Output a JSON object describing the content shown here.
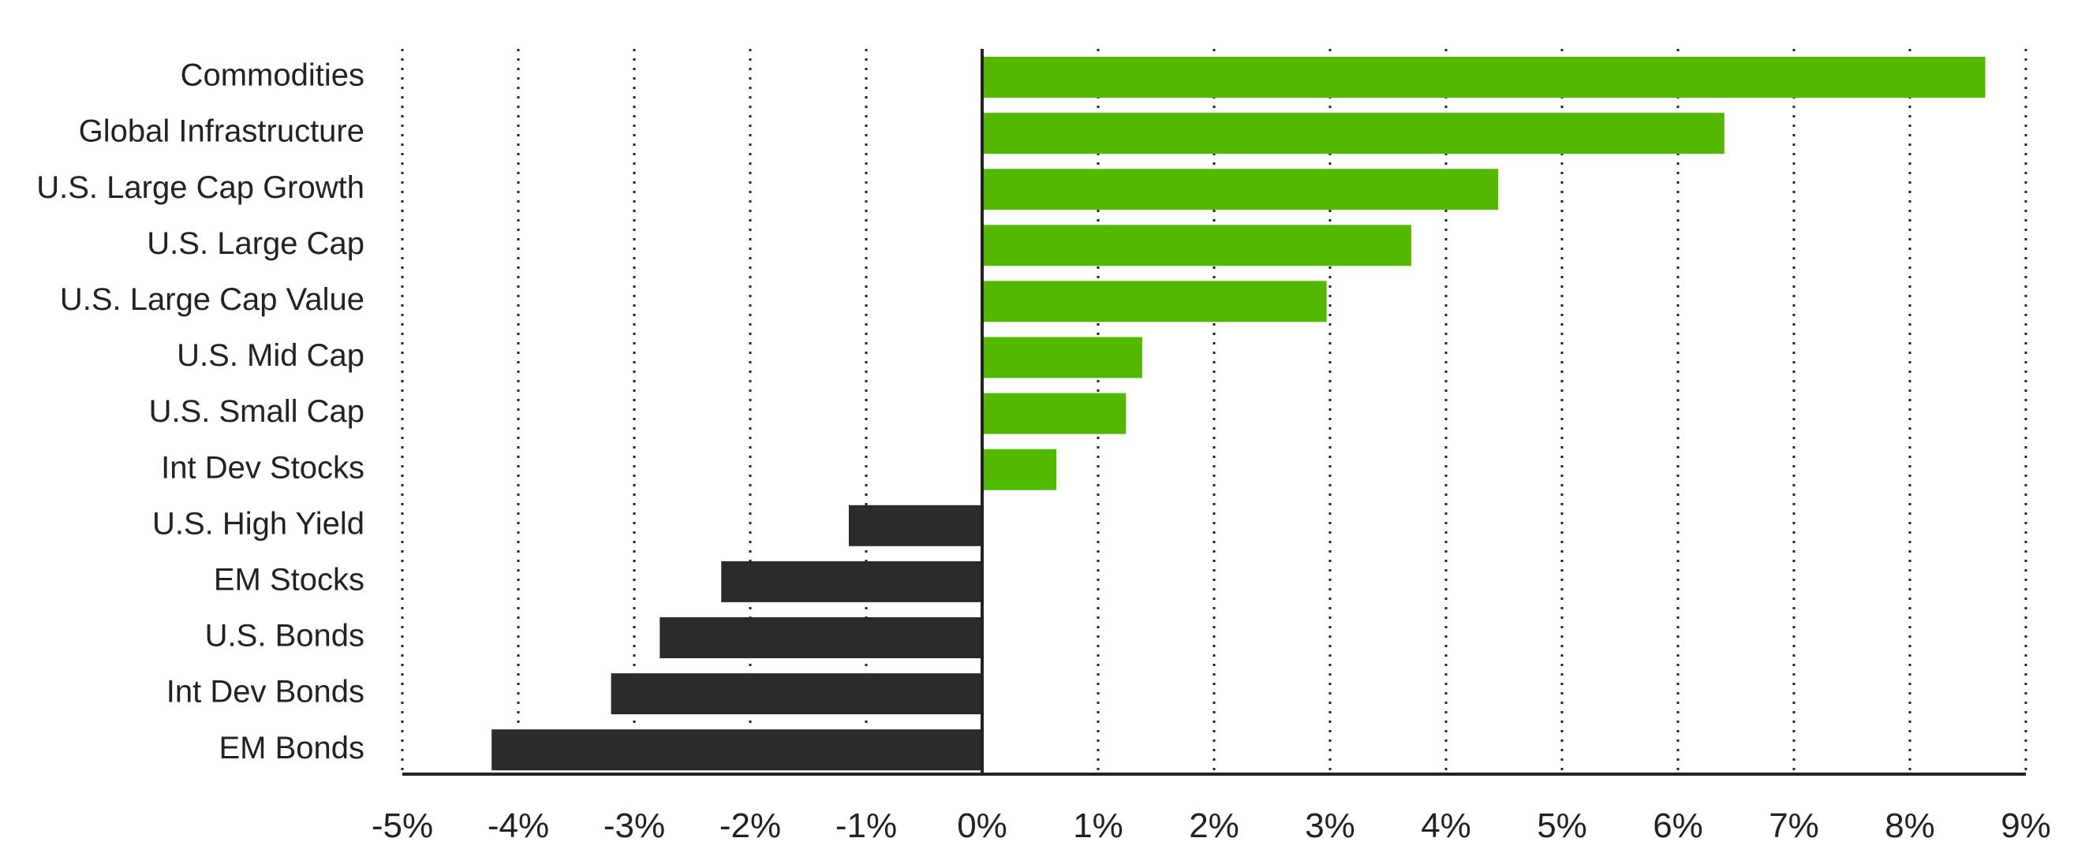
{
  "chart_data": {
    "type": "bar",
    "orientation": "horizontal",
    "categories": [
      "Commodities",
      "Global Infrastructure",
      "U.S. Large Cap Growth",
      "U.S. Large Cap",
      "U.S. Large Cap Value",
      "U.S. Mid Cap",
      "U.S. Small Cap",
      "Int Dev Stocks",
      "U.S. High Yield",
      "EM Stocks",
      "U.S. Bonds",
      "Int Dev Bonds",
      "EM Bonds"
    ],
    "values": [
      8.65,
      6.4,
      4.45,
      3.7,
      2.97,
      1.38,
      1.24,
      0.64,
      -1.15,
      -2.25,
      -2.78,
      -3.2,
      -4.23
    ],
    "xlim": [
      -5,
      9
    ],
    "xticks": [
      -5,
      -4,
      -3,
      -2,
      -1,
      0,
      1,
      2,
      3,
      4,
      5,
      6,
      7,
      8,
      9
    ],
    "xtick_labels": [
      "-5%",
      "-4%",
      "-3%",
      "-2%",
      "-1%",
      "0%",
      "1%",
      "2%",
      "3%",
      "4%",
      "5%",
      "6%",
      "7%",
      "8%",
      "9%"
    ],
    "grid": "vertical dotted",
    "colors": {
      "positive": "#52b800",
      "negative": "#2b2b2b",
      "grid": "#222222",
      "axis": "#222222"
    },
    "title": "",
    "xlabel": "",
    "ylabel": ""
  }
}
